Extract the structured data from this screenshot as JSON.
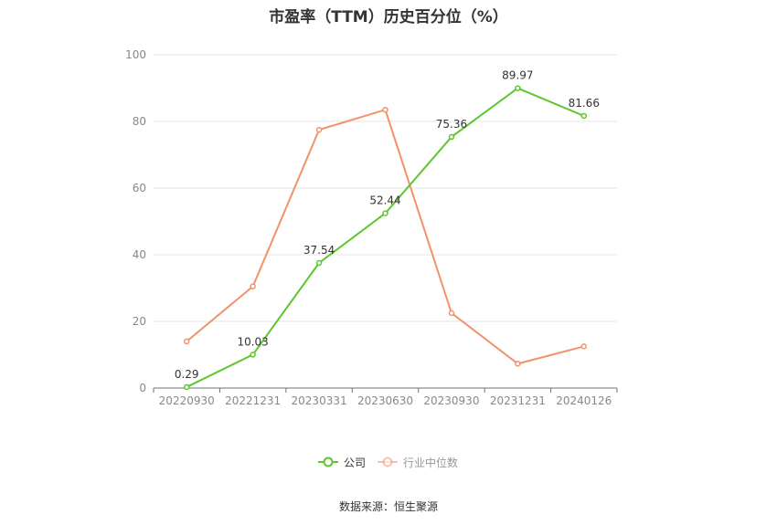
{
  "chart_data": {
    "type": "line",
    "title": "市盈率（TTM）历史百分位（%）",
    "categories": [
      "20220930",
      "20221231",
      "20230331",
      "20230630",
      "20230930",
      "20231231",
      "20240126"
    ],
    "series": [
      {
        "name": "公司",
        "values": [
          0.29,
          10.03,
          37.54,
          52.44,
          75.36,
          89.97,
          81.66
        ],
        "color": "#5ec62e",
        "labels": [
          "0.29",
          "10.03",
          "37.54",
          "52.44",
          "75.36",
          "89.97",
          "81.66"
        ]
      },
      {
        "name": "行业中位数",
        "values": [
          14.0,
          30.5,
          77.5,
          83.5,
          22.5,
          7.3,
          12.5
        ],
        "color": "#f2926a"
      }
    ],
    "ylim": [
      0,
      100
    ],
    "yticks": [
      "0",
      "20",
      "40",
      "60",
      "80",
      "100"
    ],
    "grid": true,
    "legend": "bottom-center"
  },
  "source": "数据来源：恒生聚源"
}
